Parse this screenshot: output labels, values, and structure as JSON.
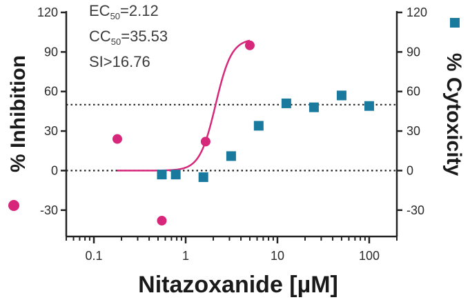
{
  "chart_data": {
    "type": "scatter",
    "xlabel": "Nitazoxanide [µM]",
    "xscale": "log",
    "xlim": [
      0.05,
      200
    ],
    "x_ticks": [
      0.1,
      1,
      10,
      100
    ],
    "x_tick_labels": [
      "0.1",
      "1",
      "10",
      "100"
    ],
    "y_left": {
      "label": "% Inhibition",
      "lim": [
        -50,
        120
      ],
      "ticks": [
        -30,
        0,
        30,
        60,
        90,
        120
      ],
      "tick_labels": [
        "-30",
        "0",
        "30",
        "60",
        "90",
        "120"
      ]
    },
    "y_right": {
      "label": "% Cytoxicity",
      "lim": [
        -50,
        120
      ],
      "ticks": [
        -30,
        0,
        30,
        60,
        90,
        120
      ],
      "tick_labels": [
        "-30",
        "0",
        "30",
        "60",
        "90",
        "120"
      ]
    },
    "reference_lines": [
      0,
      50
    ],
    "annotations": {
      "ec50_prefix": "EC",
      "ec50_sub": "50",
      "ec50_value": "=2.12",
      "cc50_prefix": "CC",
      "cc50_sub": "50",
      "cc50_value": "=35.53",
      "si": "SI>16.76"
    },
    "series": [
      {
        "name": "% Inhibition",
        "axis": "left",
        "marker": "circle",
        "color": "#d6277a",
        "points": [
          {
            "x": 0.18,
            "y": 24
          },
          {
            "x": 0.55,
            "y": -38
          },
          {
            "x": 1.65,
            "y": 22
          },
          {
            "x": 5.0,
            "y": 95
          }
        ],
        "fit": {
          "model": "hill",
          "ec50": 2.12,
          "hill": 5,
          "bottom": 0,
          "top": 100,
          "x_range": [
            0.18,
            5.0
          ]
        }
      },
      {
        "name": "% Cytoxicity",
        "axis": "right",
        "marker": "square",
        "color": "#1a7a9e",
        "points": [
          {
            "x": 0.55,
            "y": -3
          },
          {
            "x": 0.78,
            "y": -3
          },
          {
            "x": 1.56,
            "y": -5
          },
          {
            "x": 3.13,
            "y": 11
          },
          {
            "x": 6.25,
            "y": 34
          },
          {
            "x": 12.5,
            "y": 51
          },
          {
            "x": 25,
            "y": 48
          },
          {
            "x": 50,
            "y": 57
          },
          {
            "x": 100,
            "y": 49
          }
        ]
      }
    ]
  }
}
